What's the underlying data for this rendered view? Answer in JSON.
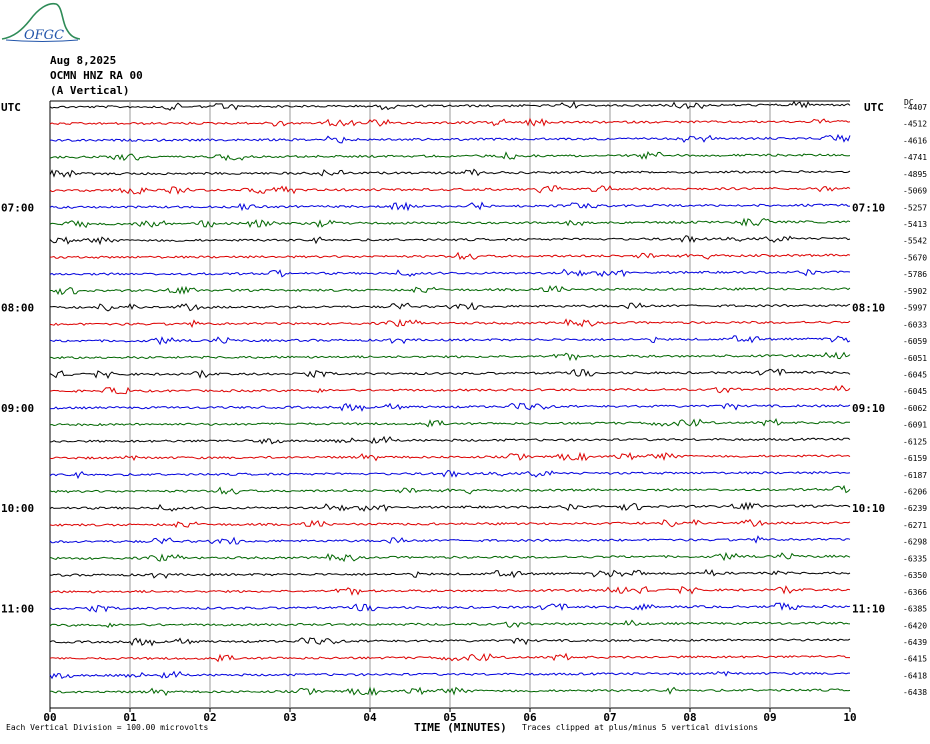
{
  "header": {
    "date": "Aug 8,2025",
    "station": "OCMN HNZ RA 00",
    "component": "(A Vertical)",
    "left_tz": "UTC",
    "right_tz": "UTC",
    "logo_text": "OFGC"
  },
  "footer": {
    "division_note": "Each Vertical Division = 100.00 microvolts",
    "clip_note": "Traces clipped at plus/minus 5 vertical divisions"
  },
  "chart_data": {
    "type": "helicorder",
    "title": "",
    "xlabel": "TIME (MINUTES)",
    "ylabel": "",
    "x_ticks": [
      "00",
      "01",
      "02",
      "03",
      "04",
      "05",
      "06",
      "07",
      "08",
      "09",
      "10"
    ],
    "xlim": [
      0,
      10
    ],
    "trace_count": 36,
    "trace_colors": [
      "#000000",
      "#dd0000",
      "#0000dd",
      "#006600"
    ],
    "left_time_labels": [
      {
        "trace": 0,
        "label": "UTC"
      },
      {
        "trace": 6,
        "label": "07:00"
      },
      {
        "trace": 12,
        "label": "08:00"
      },
      {
        "trace": 18,
        "label": "09:00"
      },
      {
        "trace": 24,
        "label": "10:00"
      },
      {
        "trace": 30,
        "label": "11:00"
      }
    ],
    "right_time_labels": [
      {
        "trace": 6,
        "label": "07:10"
      },
      {
        "trace": 12,
        "label": "08:10"
      },
      {
        "trace": 18,
        "label": "09:10"
      },
      {
        "trace": 24,
        "label": "10:10"
      },
      {
        "trace": 30,
        "label": "11:10"
      }
    ],
    "right_corner_label": "DC",
    "offsets": [
      "-4407",
      "-4512",
      "-4616",
      "-4741",
      "-4895",
      "-5069",
      "-5257",
      "-5413",
      "-5542",
      "-5670",
      "-5786",
      "-5902",
      "-5997",
      "-6033",
      "-6059",
      "-6051",
      "-6045",
      "-6045",
      "-6062",
      "-6091",
      "-6125",
      "-6159",
      "-6187",
      "-6206",
      "-6239",
      "-6271",
      "-6298",
      "-6335",
      "-6350",
      "-6366",
      "-6385",
      "-6420",
      "-6439",
      "-6415",
      "-6418",
      "-6438"
    ],
    "grid": true
  }
}
